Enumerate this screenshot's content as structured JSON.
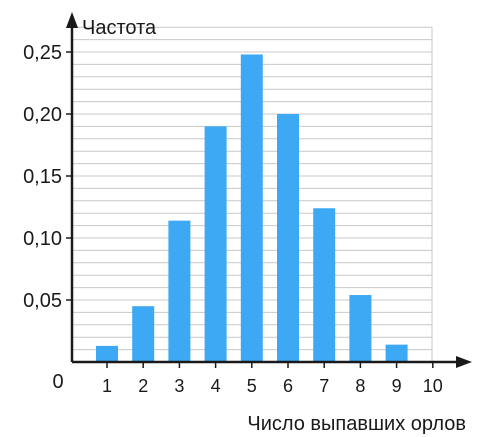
{
  "chart_data": {
    "type": "bar",
    "ylabel": "Частота",
    "xlabel": "Число выпавших орлов",
    "origin_label": "0",
    "categories": [
      "1",
      "2",
      "3",
      "4",
      "5",
      "6",
      "7",
      "8",
      "9",
      "10"
    ],
    "values": [
      0.013,
      0.045,
      0.114,
      0.19,
      0.248,
      0.2,
      0.124,
      0.054,
      0.014,
      0
    ],
    "yticks": [
      "0,05",
      "0,10",
      "0,15",
      "0,20",
      "0,25"
    ],
    "ytick_values": [
      0.05,
      0.1,
      0.15,
      0.2,
      0.25
    ],
    "ylim": [
      0,
      0.27
    ],
    "minor_grid_step": 0.01,
    "grid": true,
    "colors": {
      "bar": "#3da9f5",
      "axis": "#1a1a1a",
      "grid": "#c8c8c8"
    }
  }
}
